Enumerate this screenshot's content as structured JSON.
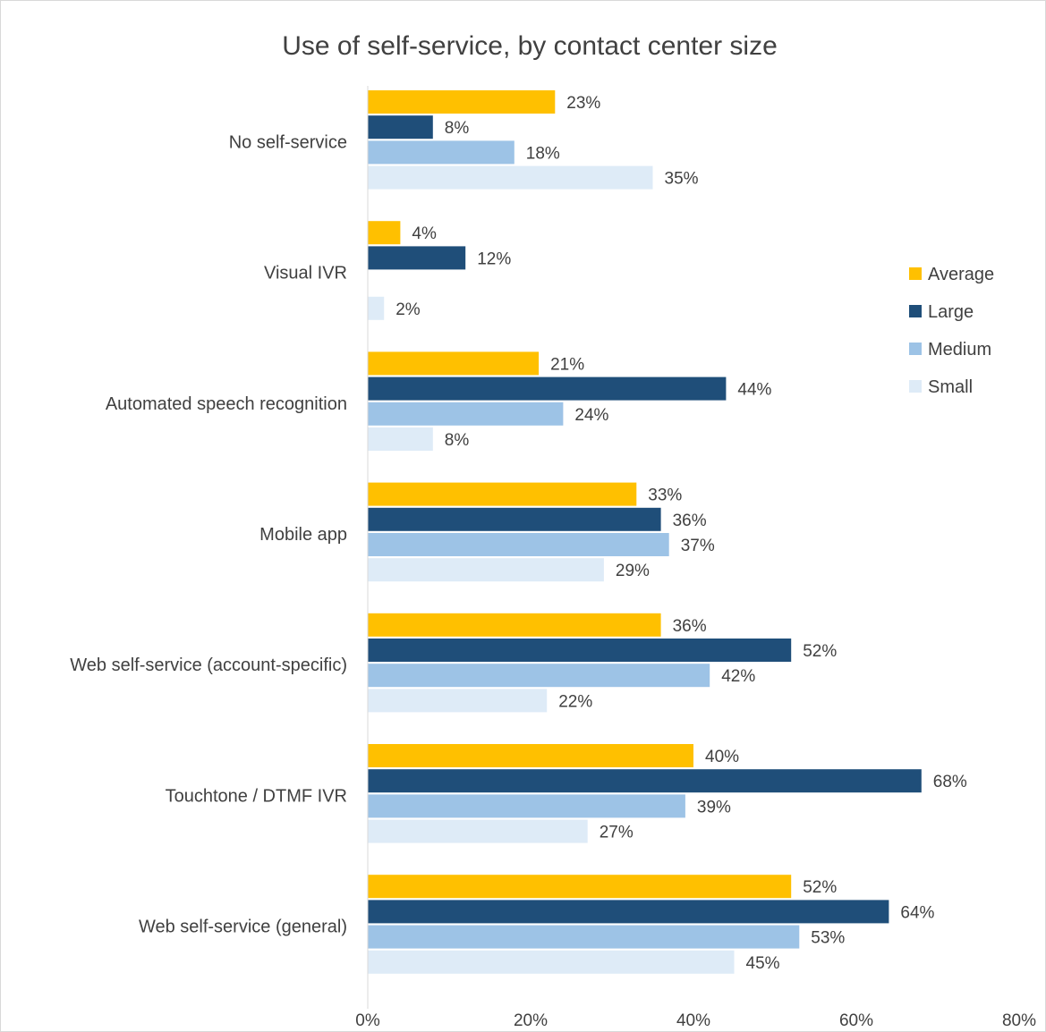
{
  "chart_data": {
    "type": "bar",
    "orientation": "horizontal",
    "title": "Use of self-service, by contact center size",
    "xlabel": "",
    "ylabel": "",
    "xlim": [
      0,
      80
    ],
    "xticks": [
      "0%",
      "20%",
      "40%",
      "60%",
      "80%"
    ],
    "grid": false,
    "legend_position": "right",
    "categories": [
      "No self-service",
      "Visual IVR",
      "Automated speech recognition",
      "Mobile app",
      "Web self-service (account-specific)",
      "Touchtone / DTMF IVR",
      "Web self-service (general)"
    ],
    "series": [
      {
        "name": "Average",
        "color": "#FFC000",
        "values": [
          23,
          4,
          21,
          33,
          36,
          40,
          52
        ]
      },
      {
        "name": "Large",
        "color": "#1F4E79",
        "values": [
          8,
          12,
          44,
          36,
          52,
          68,
          64
        ]
      },
      {
        "name": "Medium",
        "color": "#9DC3E6",
        "values": [
          18,
          null,
          24,
          37,
          42,
          39,
          53
        ]
      },
      {
        "name": "Small",
        "color": "#DEEBF7",
        "values": [
          35,
          2,
          8,
          29,
          22,
          27,
          45
        ]
      }
    ]
  }
}
